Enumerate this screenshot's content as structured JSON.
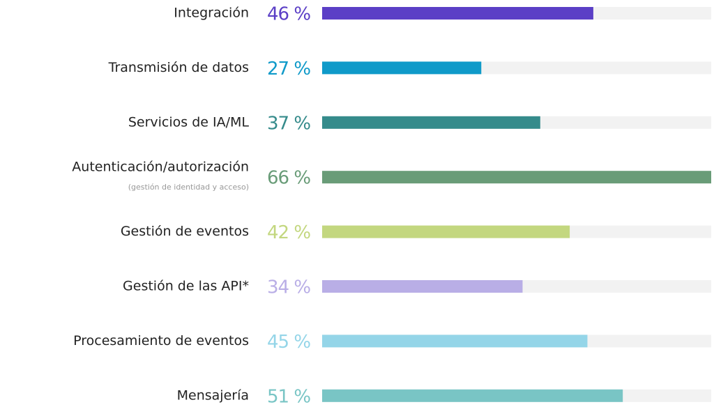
{
  "chart_data": {
    "type": "bar",
    "orientation": "horizontal",
    "categories": [
      "Integración",
      "Transmisión de datos",
      "Servicios de IA/ML",
      "Autenticación/autorización",
      "Gestión de eventos",
      "Gestión de las API*",
      "Procesamiento de eventos",
      "Mensajería"
    ],
    "sublabels": [
      null,
      null,
      null,
      "(gestión de identidad y acceso)",
      null,
      null,
      null,
      null
    ],
    "values": [
      46,
      27,
      37,
      66,
      42,
      34,
      45,
      51
    ],
    "value_labels": [
      "46 %",
      "27 %",
      "37 %",
      "66 %",
      "42 %",
      "34 %",
      "45 %",
      "51 %"
    ],
    "colors": [
      "#5b3fc6",
      "#0f9ac9",
      "#358b8b",
      "#699c78",
      "#c3d77f",
      "#b9aee6",
      "#94d5e8",
      "#79c5c5"
    ],
    "track_color": "#f2f2f2",
    "xlim": [
      0,
      66
    ]
  }
}
